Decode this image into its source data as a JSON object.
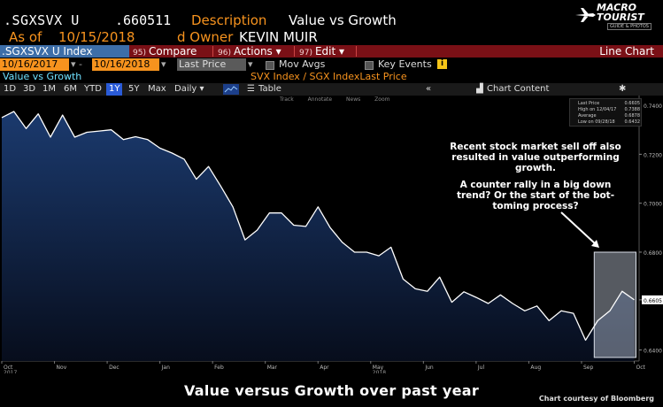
{
  "header": {
    "ticker": ".SGXSVX U",
    "price": ".660511",
    "description_label": "Description",
    "description_value": "Value vs Growth",
    "asof_label": "As of",
    "asof_value": "10/15/2018",
    "owner_label": "d Owner",
    "owner_value": "KEVIN MUIR"
  },
  "logo": {
    "line1": "MACRO",
    "line2": "TOURIST",
    "line3": "GUIDE & PHOTOS"
  },
  "toolbar": {
    "security": ".SGXSVX U Index",
    "compare_num": "95)",
    "compare_label": "Compare",
    "actions_num": "96)",
    "actions_label": "Actions ▾",
    "edit_num": "97)",
    "edit_label": "Edit ▾",
    "chart_type": "Line Chart"
  },
  "controls": {
    "start_date": "10/16/2017",
    "end_date": "10/16/2018",
    "field": "Last Price",
    "mov_avgs": "Mov Avgs",
    "key_events": "Key Events",
    "title_left": "Value vs Growth",
    "title_right": "SVX Index / SGX IndexLast Price",
    "periods": [
      "1D",
      "3D",
      "1M",
      "6M",
      "YTD",
      "1Y",
      "5Y",
      "Max"
    ],
    "active_period": "1Y",
    "frequency": "Daily ▾",
    "table_label": "Table",
    "chart_content": "Chart Content"
  },
  "chart_toolbar": [
    "Track",
    "Annotate",
    "News",
    "Zoom"
  ],
  "legend": {
    "rows": [
      {
        "label": "Last Price",
        "value": "0.6605"
      },
      {
        "label": "High on 12/04/17",
        "value": "0.7388"
      },
      {
        "label": "Average",
        "value": "0.6878"
      },
      {
        "label": "Low on 09/28/18",
        "value": "0.6432"
      }
    ]
  },
  "annotations": {
    "text1": "Recent stock market sell off also resulted in value outperforming growth.",
    "text2": "A counter rally in a big down trend?  Or the start of the bot-toming process?"
  },
  "caption": "Value versus Growth over past year",
  "courtesy": "Chart courtesy of Bloomberg",
  "colors": {
    "orange": "#f7931e",
    "redbar": "#7a1016",
    "line": "#ffffff",
    "fill_top": "#1b3a6e"
  },
  "chart_data": {
    "type": "area",
    "ylim": [
      0.6355,
      0.744
    ],
    "y_ticks": [
      0.64,
      0.6605,
      0.68,
      0.7,
      0.72,
      0.74
    ],
    "highlight_last": "0.6605",
    "x_labels": [
      "Oct",
      "Nov",
      "Dec",
      "Jan",
      "Feb",
      "Mar",
      "Apr",
      "May",
      "Jun",
      "Jul",
      "Aug",
      "Sep",
      "Oct"
    ],
    "x_sublabels": [
      {
        "label": "2017",
        "at": "Oct"
      },
      {
        "label": "2018",
        "at": "May"
      }
    ],
    "x": [
      0,
      5,
      10,
      15,
      20,
      25,
      30,
      35,
      40,
      45,
      50,
      55,
      60,
      65,
      70,
      75,
      80,
      85,
      90,
      95,
      100,
      105,
      110,
      115,
      120,
      125,
      130,
      135,
      140,
      145,
      150,
      155,
      160,
      165,
      170,
      175,
      180,
      185,
      190,
      195,
      200,
      205,
      210,
      215,
      220,
      225,
      230,
      235,
      240,
      245,
      250,
      255,
      260
    ],
    "values": [
      0.735,
      0.7375,
      0.7305,
      0.7365,
      0.727,
      0.736,
      0.727,
      0.729,
      0.7295,
      0.73,
      0.726,
      0.7272,
      0.726,
      0.7225,
      0.7205,
      0.718,
      0.7098,
      0.715,
      0.707,
      0.6985,
      0.685,
      0.689,
      0.696,
      0.696,
      0.691,
      0.6905,
      0.6985,
      0.69,
      0.684,
      0.68,
      0.68,
      0.6785,
      0.682,
      0.669,
      0.665,
      0.664,
      0.6698,
      0.6595,
      0.6638,
      0.6615,
      0.659,
      0.6625,
      0.659,
      0.656,
      0.658,
      0.652,
      0.656,
      0.655,
      0.644,
      0.652,
      0.656,
      0.664,
      0.6605
    ],
    "highlight_range": [
      245,
      260
    ],
    "xlim": [
      0,
      262
    ]
  }
}
